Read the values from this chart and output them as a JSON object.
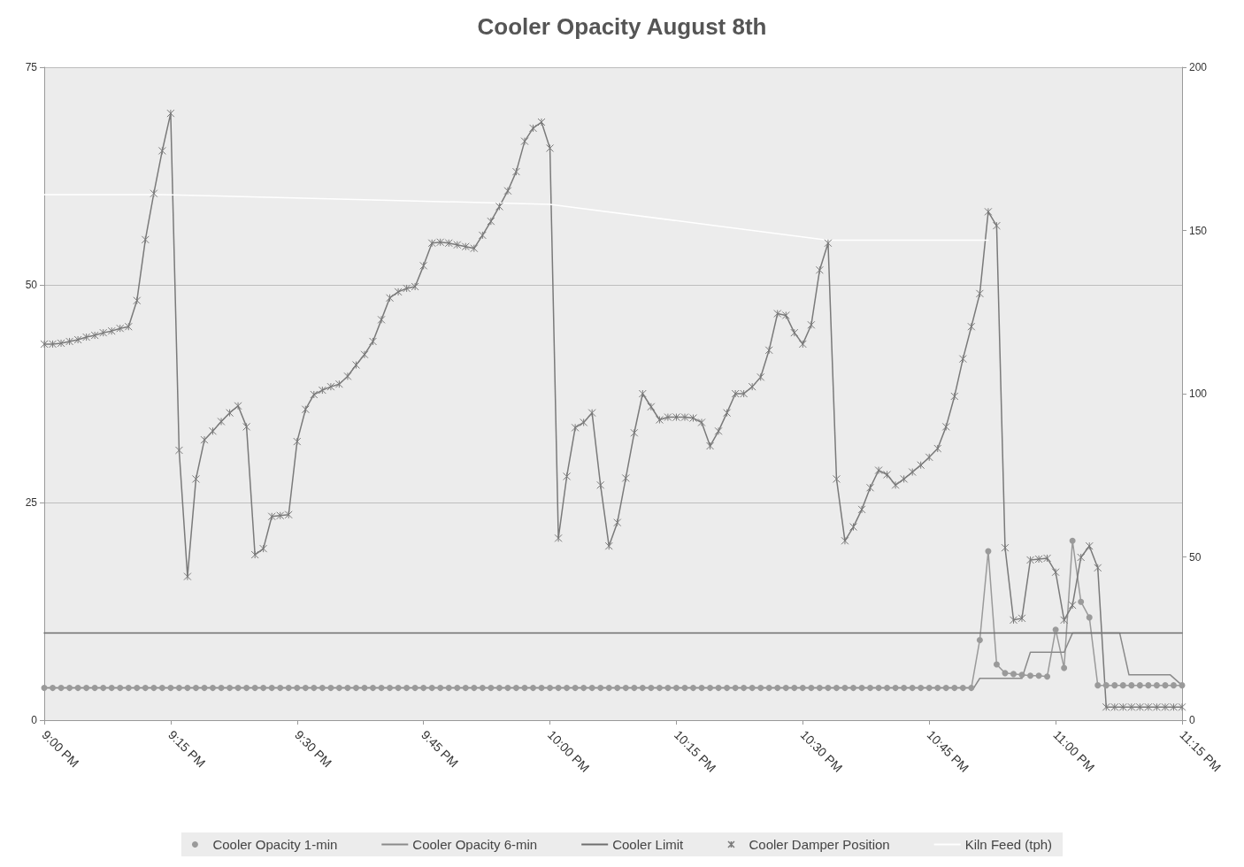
{
  "chart_data": {
    "type": "line",
    "title": "Cooler Opacity August 8th",
    "x": [
      21,
      21.0167,
      21.0333,
      21.05,
      21.0667,
      21.0833,
      21.1,
      21.1167,
      21.1333,
      21.15,
      21.1667,
      21.1833,
      21.2,
      21.2167,
      21.2333,
      21.25,
      21.2667,
      21.2833,
      21.3,
      21.3167,
      21.3333,
      21.35,
      21.3667,
      21.3833,
      21.4,
      21.4167,
      21.4333,
      21.45,
      21.4667,
      21.4833,
      21.5,
      21.5167,
      21.5333,
      21.55,
      21.5667,
      21.5833,
      21.6,
      21.6167,
      21.6333,
      21.65,
      21.6667,
      21.6833,
      21.7,
      21.7167,
      21.7333,
      21.75,
      21.7667,
      21.7833,
      21.8,
      21.8167,
      21.8333,
      21.85,
      21.8667,
      21.8833,
      21.9,
      21.9167,
      21.9333,
      21.95,
      21.9667,
      21.9833,
      22,
      22.0167,
      22.0333,
      22.05,
      22.0667,
      22.0833,
      22.1,
      22.1167,
      22.1333,
      22.15,
      22.1667,
      22.1833,
      22.2,
      22.2167,
      22.2333,
      22.25,
      22.2667,
      22.2833,
      22.3,
      22.3167,
      22.3333,
      22.35,
      22.3667,
      22.3833,
      22.4,
      22.4167,
      22.4333,
      22.45,
      22.4667,
      22.4833,
      22.5,
      22.5167,
      22.5333,
      22.55,
      22.5667,
      22.5833,
      22.6,
      22.6167,
      22.6333,
      22.65,
      22.6667,
      22.6833,
      22.7,
      22.7167,
      22.7333,
      22.75,
      22.7667,
      22.7833,
      22.8,
      22.8167,
      22.8333,
      22.85,
      22.8667,
      22.8833,
      22.9,
      22.9167,
      22.9333,
      22.95,
      22.9667,
      22.9833,
      23,
      23.0167,
      23.0333,
      23.05,
      23.0667,
      23.0833,
      23.1,
      23.1167,
      23.1333,
      23.15,
      23.1667,
      23.1833,
      23.2,
      23.2167,
      23.2333,
      23.25
    ],
    "series": [
      {
        "name": "Cooler Opacity 1-min",
        "color": "#9a9a9a",
        "marker": "circle",
        "values": [
          3.7,
          3.7,
          3.7,
          3.7,
          3.7,
          3.7,
          3.7,
          3.7,
          3.7,
          3.7,
          3.7,
          3.7,
          3.7,
          3.7,
          3.7,
          3.7,
          3.7,
          3.7,
          3.7,
          3.7,
          3.7,
          3.7,
          3.7,
          3.7,
          3.7,
          3.7,
          3.7,
          3.7,
          3.7,
          3.7,
          3.7,
          3.7,
          3.7,
          3.7,
          3.7,
          3.7,
          3.7,
          3.7,
          3.7,
          3.7,
          3.7,
          3.7,
          3.7,
          3.7,
          3.7,
          3.7,
          3.7,
          3.7,
          3.7,
          3.7,
          3.7,
          3.7,
          3.7,
          3.7,
          3.7,
          3.7,
          3.7,
          3.7,
          3.7,
          3.7,
          3.7,
          3.7,
          3.7,
          3.7,
          3.7,
          3.7,
          3.7,
          3.7,
          3.7,
          3.7,
          3.7,
          3.7,
          3.7,
          3.7,
          3.7,
          3.7,
          3.7,
          3.7,
          3.7,
          3.7,
          3.7,
          3.7,
          3.7,
          3.7,
          3.7,
          3.7,
          3.7,
          3.7,
          3.7,
          3.7,
          3.7,
          3.7,
          3.7,
          3.7,
          3.7,
          3.7,
          3.7,
          3.7,
          3.7,
          3.7,
          3.7,
          3.7,
          3.7,
          3.7,
          3.7,
          3.7,
          3.7,
          3.7,
          3.7,
          3.7,
          3.7,
          9.2,
          19.4,
          6.4,
          5.4,
          5.3,
          5.2,
          5.1,
          5.1,
          5,
          10.4,
          6,
          20.6,
          13.6,
          11.8,
          4,
          4,
          4,
          4,
          4,
          4,
          4,
          4,
          4,
          4,
          4
        ]
      },
      {
        "name": "Cooler Opacity 6-min",
        "color": "#8a8a8a",
        "marker": "none",
        "x": [
          21,
          22.838,
          22.85,
          22.9333,
          22.95,
          23.0167,
          23.0333,
          23.1267,
          23.145,
          23.2267,
          23.25
        ],
        "values": [
          3.7,
          3.7,
          4.8,
          4.8,
          7.8,
          7.8,
          10,
          10,
          5.2,
          5.2,
          4
        ]
      },
      {
        "name": "Cooler Limit",
        "color": "#6e6e6e",
        "marker": "none",
        "x": [
          21,
          23.25
        ],
        "values": [
          10,
          10
        ]
      },
      {
        "name": "Cooler Damper Position",
        "color": "#7a7a7a",
        "marker": "cross",
        "values": [
          43.2,
          43.2,
          43.3,
          43.5,
          43.7,
          44,
          44.2,
          44.5,
          44.7,
          45,
          45.2,
          48.2,
          55.2,
          60.5,
          65.4,
          69.7,
          31,
          16.5,
          27.7,
          32.2,
          33.2,
          34.3,
          35.3,
          36.1,
          33.7,
          19,
          19.7,
          23.4,
          23.5,
          23.6,
          32,
          35.7,
          37.4,
          37.9,
          38.3,
          38.6,
          39.5,
          40.8,
          42,
          43.5,
          46,
          48.5,
          49.2,
          49.6,
          49.8,
          52.2,
          54.8,
          54.9,
          54.8,
          54.6,
          54.4,
          54.2,
          55.7,
          57.3,
          59,
          60.8,
          63,
          66.5,
          68,
          68.7,
          65.7,
          20.9,
          28,
          33.6,
          34.2,
          35.3,
          27,
          20,
          22.7,
          27.8,
          33,
          37.5,
          36,
          34.5,
          34.8,
          34.8,
          34.8,
          34.7,
          34.2,
          31.5,
          33.2,
          35.3,
          37.5,
          37.5,
          38.3,
          39.4,
          42.5,
          46.7,
          46.5,
          44.5,
          43.2,
          45.4,
          51.7,
          54.8,
          27.7,
          20.6,
          22.2,
          24.2,
          26.7,
          28.7,
          28.2,
          27,
          27.7,
          28.5,
          29.3,
          30.2,
          31.2,
          33.7,
          37.2,
          41.5,
          45.2,
          49,
          58.4,
          56.8,
          19.8,
          11.5,
          11.7,
          18.4,
          18.5,
          18.6,
          17,
          11.5,
          13.2,
          18.7,
          20,
          17.5,
          1.5,
          1.5,
          1.5,
          1.5,
          1.5,
          1.5,
          1.5,
          1.5,
          1.5,
          1.5
        ]
      },
      {
        "name": "Kiln Feed (tph)",
        "color": "#ffffff",
        "marker": "none",
        "axis": "y2",
        "x": [
          21,
          21.2333,
          22,
          22.55,
          22.8667
        ],
        "values": [
          161,
          161,
          158,
          147,
          147
        ]
      }
    ],
    "xlim": [
      21,
      23.25
    ],
    "xticks": [
      {
        "value": 21,
        "label": "9:00 PM"
      },
      {
        "value": 21.25,
        "label": "9:15 PM"
      },
      {
        "value": 21.5,
        "label": "9:30 PM"
      },
      {
        "value": 21.75,
        "label": "9:45 PM"
      },
      {
        "value": 22,
        "label": "10:00 PM"
      },
      {
        "value": 22.25,
        "label": "10:15 PM"
      },
      {
        "value": 22.5,
        "label": "10:30 PM"
      },
      {
        "value": 22.75,
        "label": "10:45 PM"
      },
      {
        "value": 23,
        "label": "11:00 PM"
      },
      {
        "value": 23.25,
        "label": "11:15 PM"
      }
    ],
    "ylim": [
      0,
      75
    ],
    "yticks": [
      0,
      25,
      50,
      75
    ],
    "y2lim": [
      0,
      200
    ],
    "y2ticks": [
      0,
      50,
      100,
      150,
      200
    ],
    "grid": "y",
    "legend": "bottom"
  }
}
